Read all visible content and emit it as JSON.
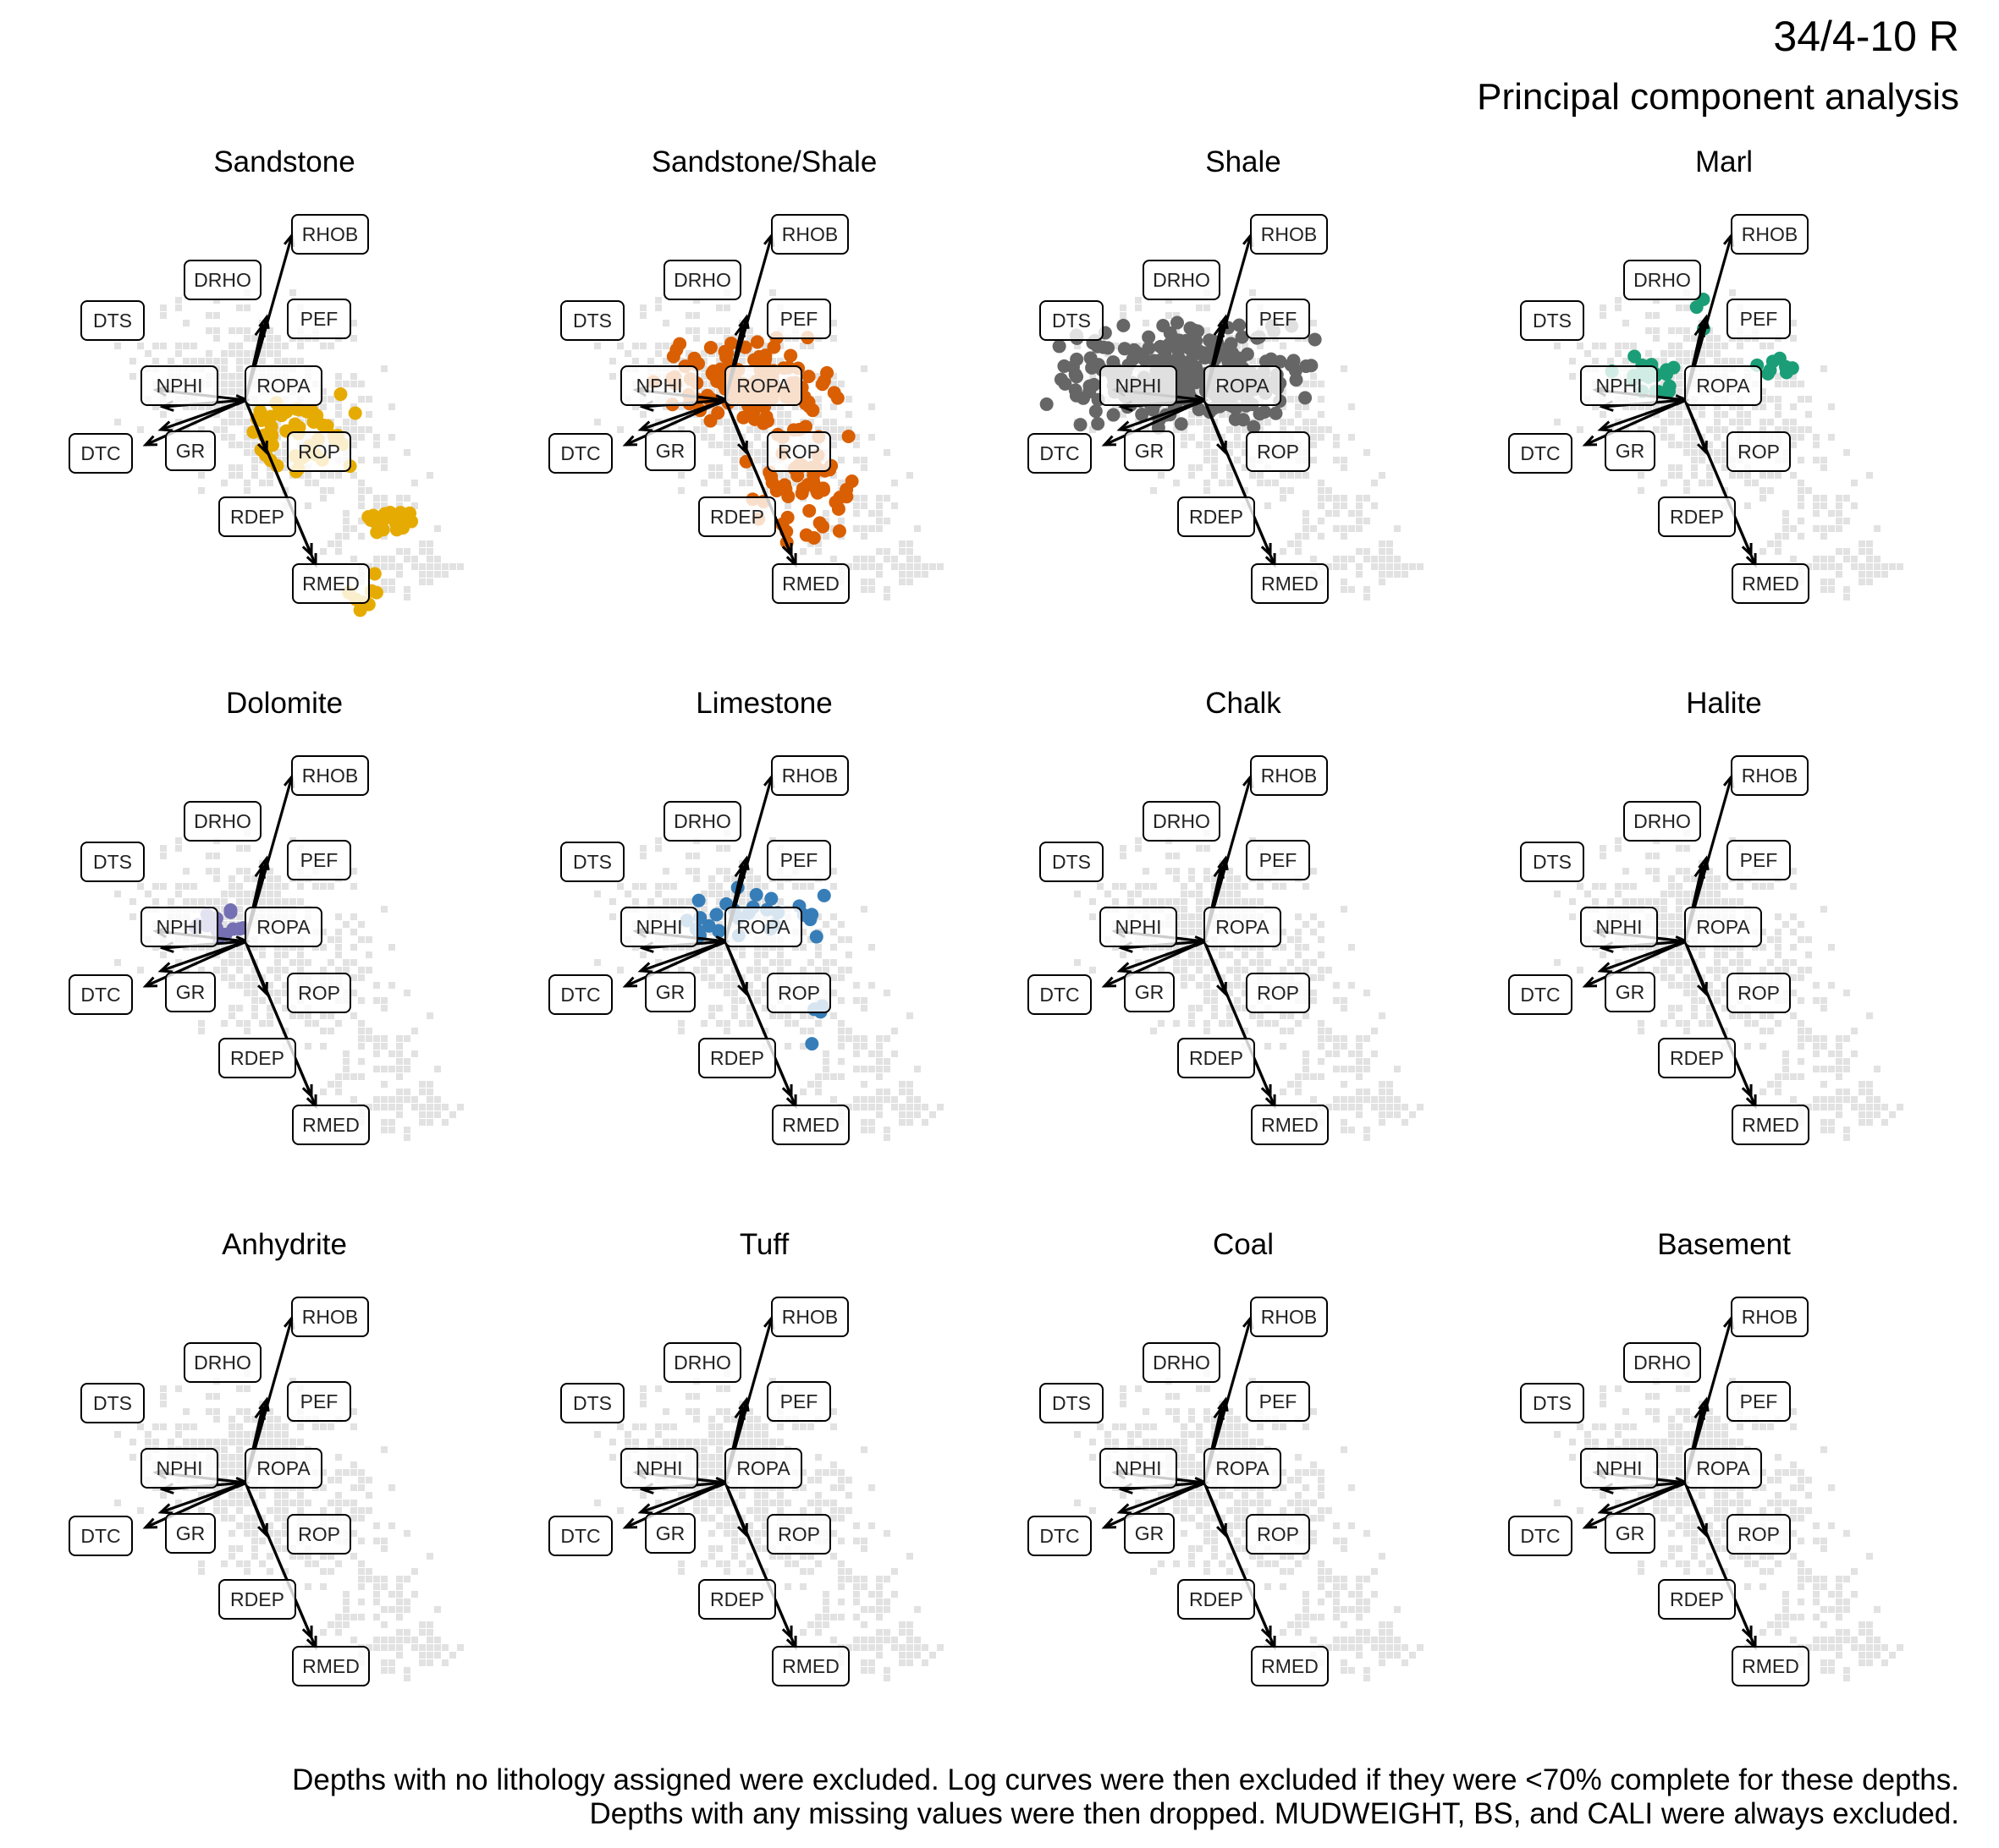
{
  "header": {
    "title": "34/4-10 R",
    "subtitle": "Principal component analysis"
  },
  "caption": {
    "line1": "Depths with no lithology assigned were excluded. Log curves were then excluded if they were <70% complete for these depths.",
    "line2": "Depths with any missing values were then dropped. MUDWEIGHT, BS, and CALI were always excluded."
  },
  "colors": {
    "background_points": "#e2e2e2",
    "arrow": "#000000",
    "label_border": "#000000",
    "label_fill": "#ffffff",
    "sandstone": "#e6ab02",
    "sandstone_shale": "#d95f02",
    "shale": "#666666",
    "marl": "#1b9e77",
    "dolomite": "#7570b3",
    "limestone": "#377eb8"
  },
  "chart_data": {
    "type": "scatter",
    "subtype": "pca-biplot-faceted",
    "facets": [
      {
        "name": "Sandstone",
        "color": "#e6ab02",
        "points": "many"
      },
      {
        "name": "Sandstone/Shale",
        "color": "#d95f02",
        "points": "many"
      },
      {
        "name": "Shale",
        "color": "#666666",
        "points": "many"
      },
      {
        "name": "Marl",
        "color": "#1b9e77",
        "points": "some"
      },
      {
        "name": "Dolomite",
        "color": "#7570b3",
        "points": "few"
      },
      {
        "name": "Limestone",
        "color": "#377eb8",
        "points": "some"
      },
      {
        "name": "Chalk",
        "color": "",
        "points": "none"
      },
      {
        "name": "Halite",
        "color": "",
        "points": "none"
      },
      {
        "name": "Anhydrite",
        "color": "",
        "points": "none"
      },
      {
        "name": "Tuff",
        "color": "",
        "points": "none"
      },
      {
        "name": "Coal",
        "color": "",
        "points": "none"
      },
      {
        "name": "Basement",
        "color": "",
        "points": "none"
      }
    ],
    "loadings": [
      {
        "variable": "RHOB",
        "x": 0.45,
        "y": 1.95
      },
      {
        "variable": "DRHO",
        "x": 0.2,
        "y": 0.95
      },
      {
        "variable": "PEF",
        "x": 0.3,
        "y": 1.1
      },
      {
        "variable": "DTS",
        "x": -1.25,
        "y": 0.15
      },
      {
        "variable": "NPHI",
        "x": -0.85,
        "y": 0.2
      },
      {
        "variable": "ROPA",
        "x": 0.05,
        "y": 0.0
      },
      {
        "variable": "DTC",
        "x": -1.45,
        "y": -0.7
      },
      {
        "variable": "GR",
        "x": -1.05,
        "y": -0.55
      },
      {
        "variable": "ROP",
        "x": 0.45,
        "y": -0.75
      },
      {
        "variable": "RDEP",
        "x": 0.95,
        "y": -1.95
      },
      {
        "variable": "RMED",
        "x": 0.9,
        "y": -2.05
      }
    ],
    "axes": "hidden",
    "grid": false,
    "legend": "none"
  }
}
